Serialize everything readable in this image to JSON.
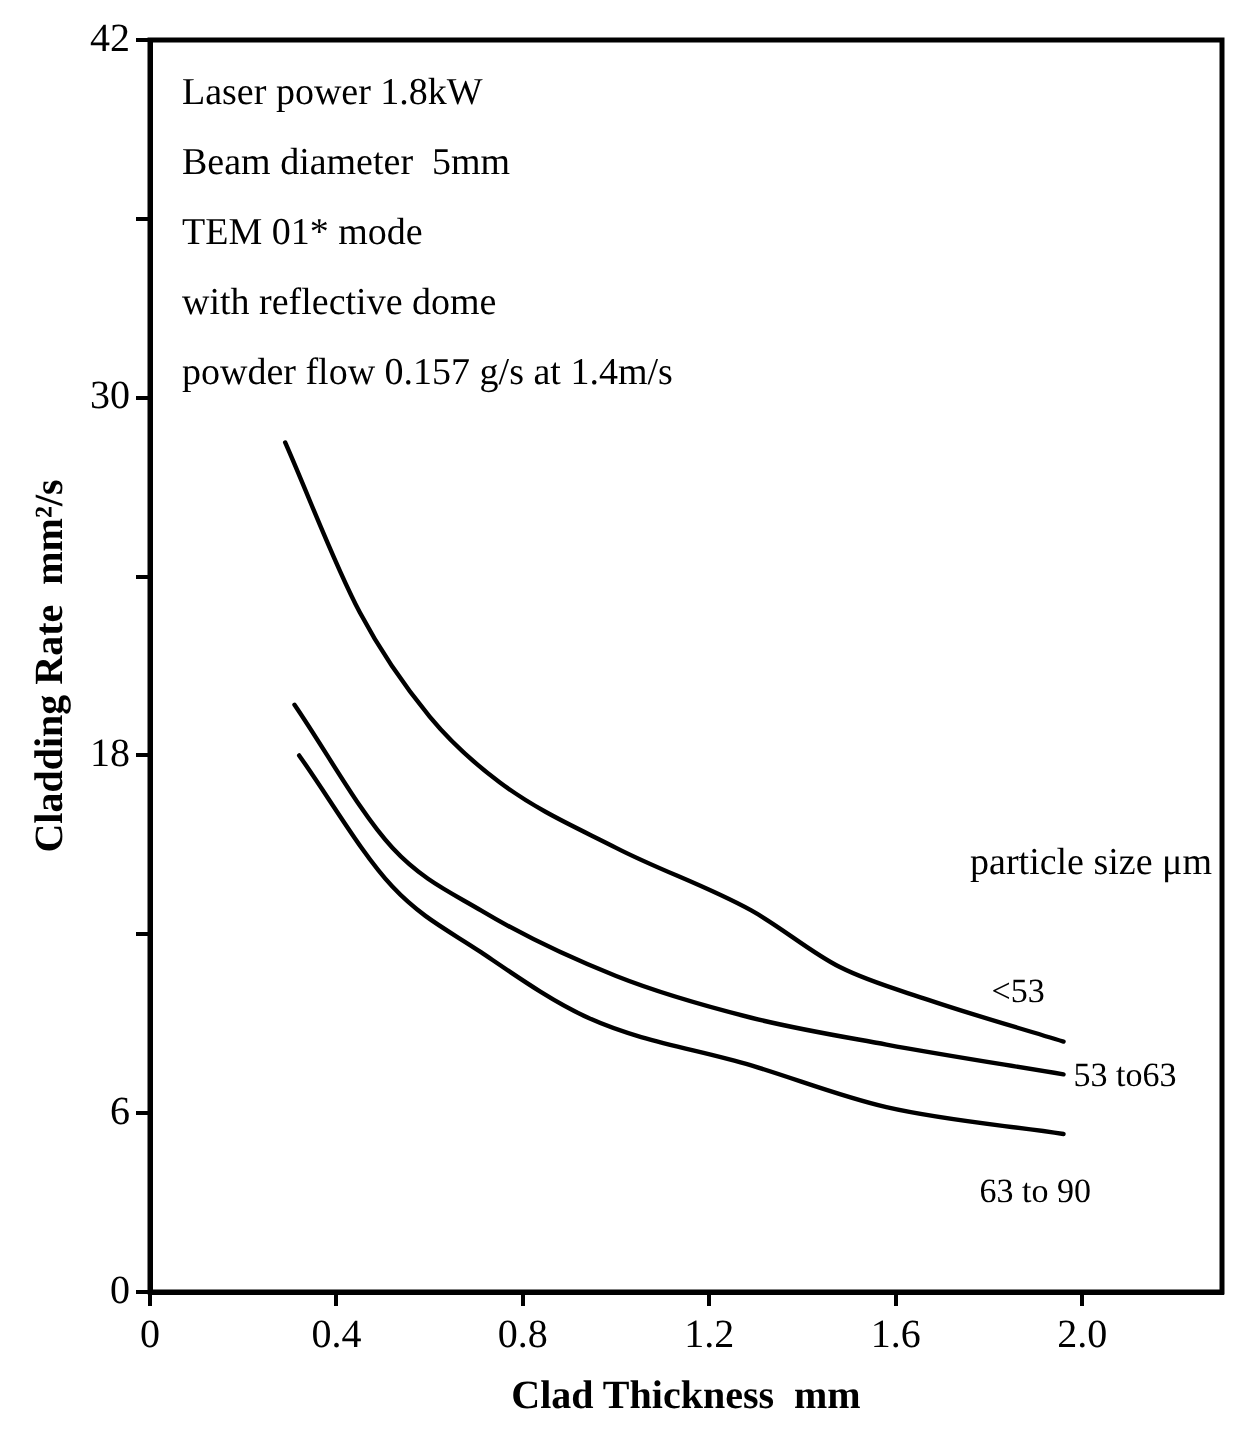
{
  "chart_data": {
    "type": "line",
    "xlabel": "Clad Thickness  mm",
    "ylabel": "Cladding Rate  mm²/s",
    "legend_title": "particle size μm",
    "annotations": [
      "Laser power 1.8kW",
      "Beam diameter  5mm",
      "TEM 01* mode",
      "with reflective dome",
      "powder flow 0.157 g/s at 1.4m/s"
    ],
    "series": [
      {
        "name": "<53",
        "color": "#000000",
        "x": [
          0.29,
          0.45,
          0.6,
          0.75,
          1.0,
          1.29,
          1.48,
          1.67,
          1.96
        ],
        "values": [
          28.5,
          22.8,
          19.3,
          17.1,
          14.9,
          12.8,
          10.9,
          9.8,
          8.4
        ]
      },
      {
        "name": "53 to63",
        "color": "#000000",
        "x": [
          0.31,
          0.52,
          0.71,
          1.0,
          1.29,
          1.58,
          1.96
        ],
        "values": [
          19.7,
          14.9,
          12.8,
          10.6,
          9.2,
          8.3,
          7.3
        ]
      },
      {
        "name": "63 to 90",
        "color": "#000000",
        "x": [
          0.32,
          0.52,
          0.71,
          0.94,
          1.29,
          1.58,
          1.96
        ],
        "values": [
          18.0,
          13.6,
          11.4,
          9.2,
          7.6,
          6.2,
          5.3
        ]
      }
    ],
    "xlim": [
      0,
      2.3
    ],
    "xticks": [
      0,
      0.4,
      0.8,
      1.2,
      1.6,
      {
        "value": 2,
        "label": "2.0"
      }
    ],
    "ylim": [
      0,
      42
    ],
    "yticks": [
      0,
      6,
      {
        "value": 12,
        "label": null
      },
      18,
      {
        "value": 24,
        "label": null
      },
      30,
      {
        "value": 36,
        "label": null
      },
      42
    ],
    "grid": false,
    "legend": false,
    "marker": "none",
    "line_style": "solid"
  }
}
